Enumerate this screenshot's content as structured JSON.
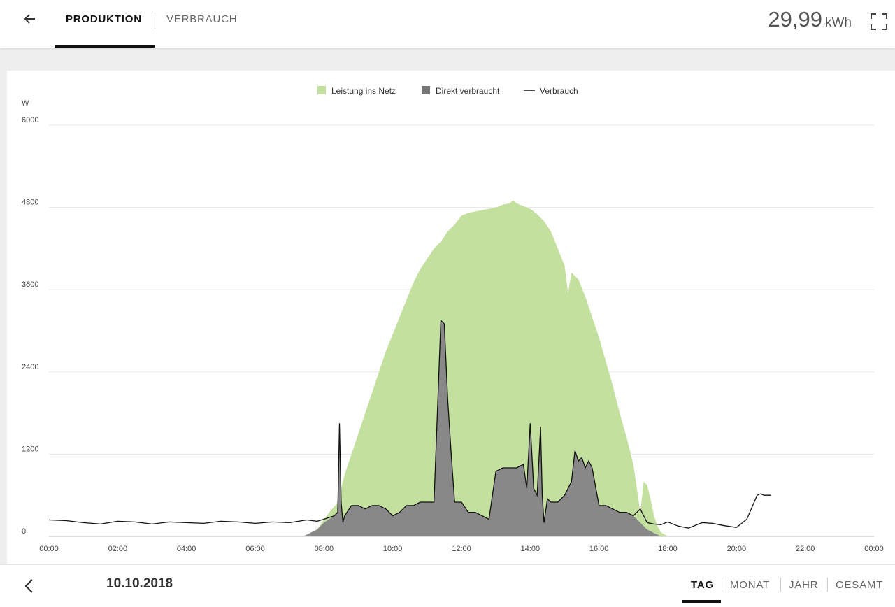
{
  "header": {
    "tabs": [
      {
        "label": "PRODUKTION",
        "active": true
      },
      {
        "label": "VERBRAUCH",
        "active": false
      }
    ],
    "total_value": "29,99",
    "total_unit": "kWh",
    "back_icon": "arrow-left-icon",
    "fullscreen_icon": "fullscreen-icon"
  },
  "footer": {
    "date": "10.10.2018",
    "prev_icon": "chevron-left-icon",
    "periods": [
      {
        "label": "TAG",
        "active": true
      },
      {
        "label": "MONAT",
        "active": false
      },
      {
        "label": "JAHR",
        "active": false
      },
      {
        "label": "GESAMT",
        "active": false
      }
    ]
  },
  "colors": {
    "production": "#c3e09f",
    "direct": "#888888",
    "consumption": "#111111",
    "grid": "#e6e6e6"
  },
  "chart_data": {
    "type": "area",
    "ylabel": "W",
    "ylim": [
      0,
      6000
    ],
    "yticks": [
      "0",
      "1200",
      "2400",
      "3600",
      "4800",
      "6000"
    ],
    "xticks": [
      "00:00",
      "02:00",
      "04:00",
      "06:00",
      "08:00",
      "10:00",
      "12:00",
      "14:00",
      "16:00",
      "18:00",
      "20:00",
      "22:00",
      "00:00"
    ],
    "xlim_hours": [
      0,
      24
    ],
    "legend": [
      {
        "name": "Leistung ins Netz",
        "marker": "square",
        "color": "#c3e09f"
      },
      {
        "name": "Direkt verbraucht",
        "marker": "square",
        "color": "#777777"
      },
      {
        "name": "Verbrauch",
        "marker": "line",
        "color": "#111111"
      }
    ],
    "legend_position": "top-center",
    "grid": true,
    "series": [
      {
        "name": "Leistung ins Netz",
        "x": [
          7.4,
          7.8,
          8.0,
          8.4,
          8.6,
          8.8,
          9.0,
          9.2,
          9.4,
          9.6,
          9.8,
          10.0,
          10.2,
          10.4,
          10.6,
          10.8,
          11.0,
          11.2,
          11.4,
          11.6,
          11.8,
          12.0,
          12.2,
          12.4,
          12.6,
          12.8,
          13.0,
          13.2,
          13.4,
          13.5,
          13.6,
          13.8,
          14.0,
          14.2,
          14.4,
          14.6,
          14.8,
          15.0,
          15.1,
          15.2,
          15.3,
          15.4,
          15.6,
          15.8,
          16.0,
          16.2,
          16.4,
          16.6,
          16.8,
          17.0,
          17.1,
          17.2,
          17.3,
          17.4,
          17.5,
          17.6,
          17.7,
          17.8,
          18.0
        ],
        "values": [
          0,
          100,
          250,
          500,
          900,
          1200,
          1500,
          1800,
          2100,
          2400,
          2700,
          2950,
          3200,
          3450,
          3700,
          3900,
          4050,
          4200,
          4300,
          4450,
          4550,
          4680,
          4720,
          4740,
          4760,
          4780,
          4800,
          4840,
          4860,
          4900,
          4860,
          4820,
          4780,
          4700,
          4600,
          4450,
          4200,
          3950,
          3550,
          3850,
          3800,
          3750,
          3500,
          3200,
          2900,
          2550,
          2200,
          1800,
          1450,
          1050,
          700,
          350,
          800,
          750,
          550,
          300,
          150,
          60,
          0
        ]
      },
      {
        "name": "Direkt verbraucht",
        "x": [
          7.4,
          7.8,
          8.0,
          8.3,
          8.4,
          8.45,
          8.5,
          8.55,
          8.6,
          8.8,
          9.0,
          9.2,
          9.4,
          9.6,
          9.8,
          10.0,
          10.2,
          10.4,
          10.6,
          10.8,
          11.0,
          11.2,
          11.4,
          11.5,
          11.6,
          11.7,
          11.8,
          12.0,
          12.2,
          12.4,
          12.6,
          12.8,
          13.0,
          13.2,
          13.4,
          13.6,
          13.8,
          13.9,
          14.0,
          14.1,
          14.2,
          14.3,
          14.35,
          14.4,
          14.5,
          14.6,
          14.8,
          15.0,
          15.2,
          15.3,
          15.4,
          15.5,
          15.6,
          15.7,
          15.8,
          16.0,
          16.2,
          16.4,
          16.6,
          16.8,
          17.0,
          17.2,
          17.4,
          17.6,
          17.8,
          18.0
        ],
        "values": [
          0,
          100,
          200,
          300,
          350,
          1650,
          500,
          200,
          300,
          450,
          450,
          400,
          450,
          450,
          400,
          300,
          350,
          450,
          450,
          500,
          500,
          500,
          3150,
          3100,
          2000,
          1200,
          500,
          500,
          350,
          350,
          300,
          250,
          950,
          1000,
          1000,
          1000,
          1050,
          700,
          1650,
          700,
          600,
          1600,
          600,
          200,
          550,
          500,
          500,
          600,
          800,
          1250,
          1100,
          1150,
          1000,
          1100,
          1000,
          450,
          450,
          400,
          350,
          350,
          300,
          200,
          100,
          50,
          0,
          0
        ]
      },
      {
        "name": "Verbrauch",
        "x": [
          0,
          0.5,
          1.0,
          1.5,
          2.0,
          2.5,
          3.0,
          3.5,
          4.0,
          4.5,
          5.0,
          5.5,
          6.0,
          6.5,
          7.0,
          7.5,
          7.8,
          8.0,
          8.3,
          8.4,
          8.45,
          8.5,
          8.55,
          8.6,
          8.8,
          9.0,
          9.2,
          9.4,
          9.6,
          9.8,
          10.0,
          10.2,
          10.4,
          10.6,
          10.8,
          11.0,
          11.2,
          11.4,
          11.5,
          11.6,
          11.7,
          11.8,
          12.0,
          12.2,
          12.4,
          12.6,
          12.8,
          13.0,
          13.2,
          13.4,
          13.6,
          13.8,
          13.9,
          14.0,
          14.1,
          14.2,
          14.3,
          14.35,
          14.4,
          14.5,
          14.6,
          14.8,
          15.0,
          15.2,
          15.3,
          15.4,
          15.5,
          15.6,
          15.7,
          15.8,
          16.0,
          16.2,
          16.4,
          16.6,
          16.8,
          17.0,
          17.2,
          17.4,
          17.6,
          17.8,
          18.0,
          18.3,
          18.6,
          19.0,
          19.3,
          19.6,
          20.0,
          20.3,
          20.6,
          20.7,
          20.8,
          21.0
        ],
        "values": [
          240,
          230,
          200,
          180,
          220,
          210,
          180,
          210,
          200,
          190,
          220,
          210,
          190,
          210,
          200,
          240,
          220,
          250,
          300,
          350,
          1650,
          500,
          200,
          300,
          450,
          450,
          400,
          450,
          450,
          400,
          300,
          350,
          450,
          450,
          500,
          500,
          500,
          3150,
          3100,
          2000,
          1200,
          500,
          500,
          350,
          350,
          300,
          250,
          950,
          1000,
          1000,
          1000,
          1050,
          700,
          1650,
          700,
          600,
          1600,
          600,
          200,
          550,
          500,
          500,
          600,
          800,
          1250,
          1100,
          1150,
          1000,
          1100,
          1000,
          450,
          450,
          400,
          350,
          350,
          300,
          400,
          200,
          180,
          170,
          210,
          150,
          120,
          200,
          190,
          160,
          130,
          250,
          600,
          620,
          600,
          600
        ]
      }
    ]
  }
}
